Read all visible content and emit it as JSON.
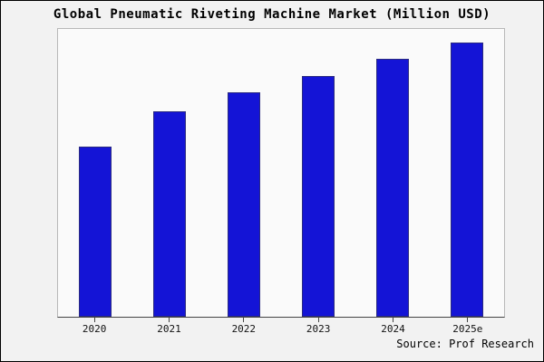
{
  "title": "Global Pneumatic Riveting Machine Market (Million USD)",
  "source": "Source: Prof Research",
  "colors": {
    "bar_fill": "#1414d6",
    "bar_border": "#2a2a80",
    "background": "#f2f2f2",
    "plot_border": "#b8b8b8",
    "axis": "#444444"
  },
  "chart_data": {
    "type": "bar",
    "categories": [
      "2020",
      "2021",
      "2022",
      "2023",
      "2024",
      "2025e"
    ],
    "values": [
      62,
      75,
      82,
      88,
      94,
      100
    ],
    "title": "Global Pneumatic Riveting Machine Market (Million USD)",
    "xlabel": "",
    "ylabel": "",
    "ylim": [
      0,
      105
    ],
    "grid": false,
    "legend": false,
    "note": "no y-axis tick labels shown; values estimated relative units"
  }
}
